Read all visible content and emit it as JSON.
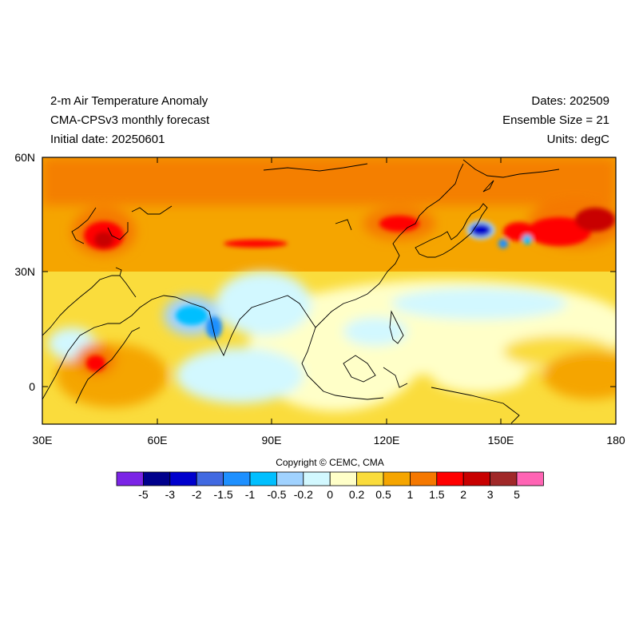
{
  "header": {
    "left_lines": [
      "2-m Air Temperature Anomaly",
      "CMA-CPSv3 monthly forecast",
      "Initial date: 20250601"
    ],
    "right_lines": [
      "Dates: 202509",
      "Ensemble Size = 21",
      "Units: degC"
    ]
  },
  "axes": {
    "x_ticks": [
      "30E",
      "60E",
      "90E",
      "120E",
      "150E",
      "180"
    ],
    "y_ticks": [
      "60N",
      "30N",
      "0"
    ],
    "lon_range": [
      30,
      180
    ],
    "lat_range": [
      -10,
      60
    ]
  },
  "copyright": "Copyright © CEMC, CMA",
  "colorbar": {
    "colors": [
      "#7b24e6",
      "#00008c",
      "#0000cd",
      "#4169e1",
      "#1e90ff",
      "#00bfff",
      "#a0d2ff",
      "#d2f8ff",
      "#ffffc8",
      "#fadc3c",
      "#f5a500",
      "#f57800",
      "#ff0000",
      "#c80000",
      "#a02828",
      "#ff64b4"
    ],
    "labels": [
      "-5",
      "-3",
      "-2",
      "-1.5",
      "-1",
      "-0.5",
      "-0.2",
      "0",
      "0.2",
      "0.5",
      "1",
      "1.5",
      "2",
      "3",
      "5"
    ]
  }
}
